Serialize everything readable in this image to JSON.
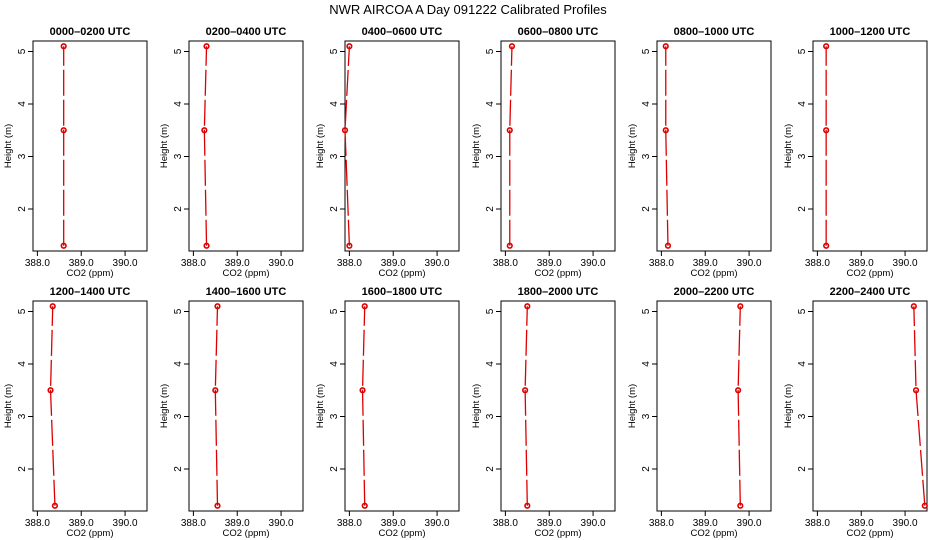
{
  "figure": {
    "title": "NWR AIRCOA A  Day 091222  Calibrated Profiles",
    "series_color": "#dd0000"
  },
  "chart_data": [
    {
      "type": "line",
      "title": "0000–0200 UTC",
      "xlabel": "CO2 (ppm)",
      "ylabel": "Height (m)",
      "xlim": [
        387.9,
        390.5
      ],
      "ylim": [
        1.2,
        5.2
      ],
      "xticks": [
        "388.0",
        "389.0",
        "390.0"
      ],
      "yticks": [
        "2",
        "3",
        "4",
        "5"
      ],
      "x": [
        388.6,
        388.6,
        388.6
      ],
      "y": [
        1.3,
        3.5,
        5.1
      ]
    },
    {
      "type": "line",
      "title": "0200–0400 UTC",
      "xlabel": "CO2 (ppm)",
      "ylabel": "Height (m)",
      "xlim": [
        387.9,
        390.5
      ],
      "ylim": [
        1.2,
        5.2
      ],
      "xticks": [
        "388.0",
        "389.0",
        "390.0"
      ],
      "yticks": [
        "2",
        "3",
        "4",
        "5"
      ],
      "x": [
        388.3,
        388.25,
        388.3
      ],
      "y": [
        1.3,
        3.5,
        5.1
      ]
    },
    {
      "type": "line",
      "title": "0400–0600 UTC",
      "xlabel": "CO2 (ppm)",
      "ylabel": "Height (m)",
      "xlim": [
        387.9,
        390.5
      ],
      "ylim": [
        1.2,
        5.2
      ],
      "xticks": [
        "388.0",
        "389.0",
        "390.0"
      ],
      "yticks": [
        "2",
        "3",
        "4",
        "5"
      ],
      "x": [
        388.0,
        387.9,
        388.0
      ],
      "y": [
        1.3,
        3.5,
        5.1
      ]
    },
    {
      "type": "line",
      "title": "0600–0800 UTC",
      "xlabel": "CO2 (ppm)",
      "ylabel": "Height (m)",
      "xlim": [
        387.9,
        390.5
      ],
      "ylim": [
        1.2,
        5.2
      ],
      "xticks": [
        "388.0",
        "389.0",
        "390.0"
      ],
      "yticks": [
        "2",
        "3",
        "4",
        "5"
      ],
      "x": [
        388.1,
        388.1,
        388.15
      ],
      "y": [
        1.3,
        3.5,
        5.1
      ]
    },
    {
      "type": "line",
      "title": "0800–1000 UTC",
      "xlabel": "CO2 (ppm)",
      "ylabel": "Height (m)",
      "xlim": [
        387.9,
        390.5
      ],
      "ylim": [
        1.2,
        5.2
      ],
      "xticks": [
        "388.0",
        "389.0",
        "390.0"
      ],
      "yticks": [
        "2",
        "3",
        "4",
        "5"
      ],
      "x": [
        388.15,
        388.1,
        388.1
      ],
      "y": [
        1.3,
        3.5,
        5.1
      ]
    },
    {
      "type": "line",
      "title": "1000–1200 UTC",
      "xlabel": "CO2 (ppm)",
      "ylabel": "Height (m)",
      "xlim": [
        387.9,
        390.5
      ],
      "ylim": [
        1.2,
        5.2
      ],
      "xticks": [
        "388.0",
        "389.0",
        "390.0"
      ],
      "yticks": [
        "2",
        "3",
        "4",
        "5"
      ],
      "x": [
        388.2,
        388.2,
        388.2
      ],
      "y": [
        1.3,
        3.5,
        5.1
      ]
    },
    {
      "type": "line",
      "title": "1200–1400 UTC",
      "xlabel": "CO2 (ppm)",
      "ylabel": "Height (m)",
      "xlim": [
        387.9,
        390.5
      ],
      "ylim": [
        1.2,
        5.2
      ],
      "xticks": [
        "388.0",
        "389.0",
        "390.0"
      ],
      "yticks": [
        "2",
        "3",
        "4",
        "5"
      ],
      "x": [
        388.4,
        388.3,
        388.35
      ],
      "y": [
        1.3,
        3.5,
        5.1
      ]
    },
    {
      "type": "line",
      "title": "1400–1600 UTC",
      "xlabel": "CO2 (ppm)",
      "ylabel": "Height (m)",
      "xlim": [
        387.9,
        390.5
      ],
      "ylim": [
        1.2,
        5.2
      ],
      "xticks": [
        "388.0",
        "389.0",
        "390.0"
      ],
      "yticks": [
        "2",
        "3",
        "4",
        "5"
      ],
      "x": [
        388.55,
        388.5,
        388.55
      ],
      "y": [
        1.3,
        3.5,
        5.1
      ]
    },
    {
      "type": "line",
      "title": "1600–1800 UTC",
      "xlabel": "CO2 (ppm)",
      "ylabel": "Height (m)",
      "xlim": [
        387.9,
        390.5
      ],
      "ylim": [
        1.2,
        5.2
      ],
      "xticks": [
        "388.0",
        "389.0",
        "390.0"
      ],
      "yticks": [
        "2",
        "3",
        "4",
        "5"
      ],
      "x": [
        388.35,
        388.3,
        388.35
      ],
      "y": [
        1.3,
        3.5,
        5.1
      ]
    },
    {
      "type": "line",
      "title": "1800–2000 UTC",
      "xlabel": "CO2 (ppm)",
      "ylabel": "Height (m)",
      "xlim": [
        387.9,
        390.5
      ],
      "ylim": [
        1.2,
        5.2
      ],
      "xticks": [
        "388.0",
        "389.0",
        "390.0"
      ],
      "yticks": [
        "2",
        "3",
        "4",
        "5"
      ],
      "x": [
        388.5,
        388.45,
        388.5
      ],
      "y": [
        1.3,
        3.5,
        5.1
      ]
    },
    {
      "type": "line",
      "title": "2000–2200 UTC",
      "xlabel": "CO2 (ppm)",
      "ylabel": "Height (m)",
      "xlim": [
        387.9,
        390.5
      ],
      "ylim": [
        1.2,
        5.2
      ],
      "xticks": [
        "388.0",
        "389.0",
        "390.0"
      ],
      "yticks": [
        "2",
        "3",
        "4",
        "5"
      ],
      "x": [
        389.8,
        389.75,
        389.8
      ],
      "y": [
        1.3,
        3.5,
        5.1
      ]
    },
    {
      "type": "line",
      "title": "2200–2400 UTC",
      "xlabel": "CO2 (ppm)",
      "ylabel": "Height (m)",
      "xlim": [
        387.9,
        390.5
      ],
      "ylim": [
        1.2,
        5.2
      ],
      "xticks": [
        "388.0",
        "389.0",
        "390.0"
      ],
      "yticks": [
        "2",
        "3",
        "4",
        "5"
      ],
      "x": [
        390.45,
        390.25,
        390.2
      ],
      "y": [
        1.3,
        3.5,
        5.1
      ]
    }
  ]
}
